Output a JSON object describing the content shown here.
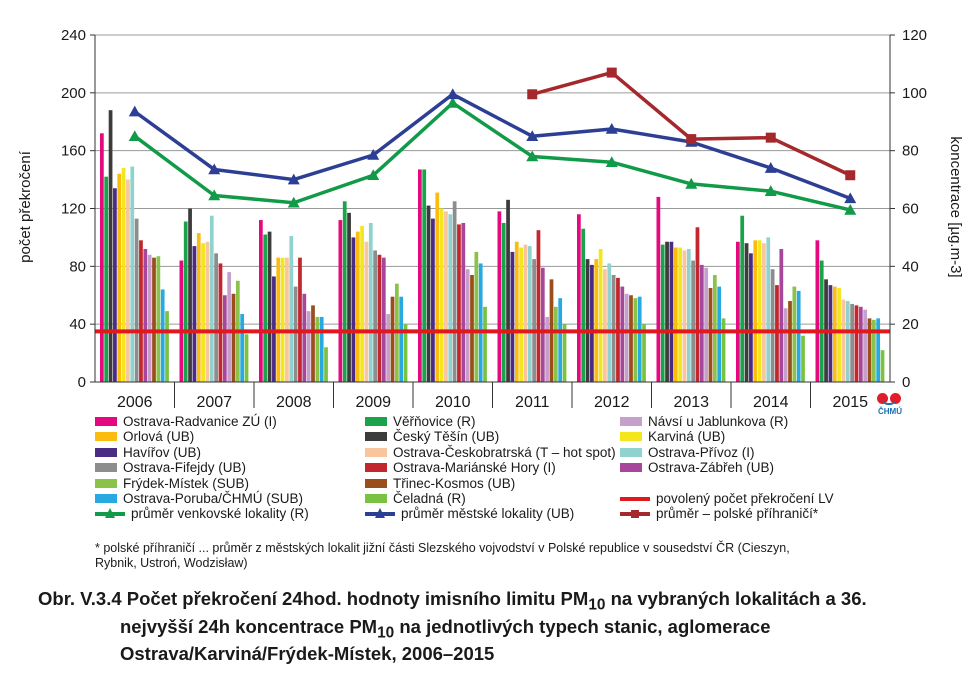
{
  "chart_data": {
    "type": "bar",
    "categories": [
      "2006",
      "2007",
      "2008",
      "2009",
      "2010",
      "2011",
      "2012",
      "2013",
      "2014",
      "2015"
    ],
    "ylabel": "počet překročení",
    "ylabel_right": "koncentrace [µg.m-3]",
    "ylim": [
      0,
      240
    ],
    "ylim_right": [
      0,
      120
    ],
    "yticks": [
      0,
      40,
      80,
      120,
      160,
      200,
      240
    ],
    "yticks_right": [
      0,
      20,
      40,
      60,
      80,
      100,
      120
    ],
    "grid": true,
    "series": [
      {
        "name": "Ostrava-Radvanice ZÚ (I)",
        "color": "#e5097f",
        "values": [
          172,
          84,
          112,
          112,
          147,
          118,
          116,
          128,
          97,
          98
        ]
      },
      {
        "name": "Věřňovice (R)",
        "color": "#1aa34a",
        "values": [
          142,
          111,
          102,
          125,
          147,
          110,
          106,
          95,
          115,
          84
        ]
      },
      {
        "name": "Český Těšín (UB)",
        "color": "#3c3c3c",
        "values": [
          188,
          120,
          104,
          117,
          122,
          126,
          85,
          97,
          96,
          71
        ]
      },
      {
        "name": "Havířov (UB)",
        "color": "#4b2c85",
        "values": [
          134,
          94,
          73,
          100,
          113,
          90,
          81,
          97,
          89,
          67
        ]
      },
      {
        "name": "Orlová (UB)",
        "color": "#fbbb0f",
        "values": [
          144,
          103,
          86,
          104,
          131,
          97,
          85,
          93,
          98,
          66
        ]
      },
      {
        "name": "Karviná (UB)",
        "color": "#f4e61d",
        "values": [
          148,
          96,
          86,
          108,
          120,
          93,
          92,
          93,
          98,
          65
        ]
      },
      {
        "name": "Ostrava-Českobratrská (T – hot spot)",
        "color": "#f9c59d",
        "values": [
          140,
          97,
          86,
          97,
          118,
          95,
          78,
          91,
          96,
          57
        ]
      },
      {
        "name": "Ostrava-Přívoz (I)",
        "color": "#8fd2cf",
        "values": [
          149,
          115,
          101,
          110,
          116,
          94,
          82,
          92,
          100,
          56
        ]
      },
      {
        "name": "Ostrava-Fifejdy (UB)",
        "color": "#8d8d8d",
        "values": [
          113,
          89,
          66,
          91,
          125,
          85,
          74,
          84,
          78,
          54
        ]
      },
      {
        "name": "Ostrava-Mariánské Hory (I)",
        "color": "#c1272d",
        "values": [
          98,
          82,
          86,
          88,
          109,
          105,
          72,
          107,
          67,
          53
        ]
      },
      {
        "name": "Ostrava-Zábřeh (UB)",
        "color": "#a6479b",
        "values": [
          92,
          60,
          61,
          86,
          110,
          79,
          66,
          81,
          92,
          52
        ]
      },
      {
        "name": "Návsí u Jablunkova (R)",
        "color": "#c79fcb",
        "values": [
          88,
          76,
          49,
          47,
          78,
          45,
          61,
          79,
          51,
          50
        ]
      },
      {
        "name": "Třinec-Kosmos (UB)",
        "color": "#9a4e1c",
        "values": [
          86,
          61,
          53,
          59,
          74,
          71,
          60,
          65,
          56,
          44
        ]
      },
      {
        "name": "Frýdek-Místek (SUB)",
        "color": "#8bc34a",
        "values": [
          87,
          70,
          45,
          68,
          90,
          52,
          58,
          74,
          66,
          43
        ]
      },
      {
        "name": "Ostrava-Poruba/ČHMÚ (SUB)",
        "color": "#29a9e1",
        "values": [
          64,
          47,
          45,
          59,
          82,
          58,
          59,
          66,
          63,
          44
        ]
      },
      {
        "name": "Čeladná (R)",
        "color": "#7cc242",
        "values": [
          49,
          33,
          24,
          40,
          52,
          40,
          40,
          44,
          32,
          22
        ]
      }
    ],
    "lines": [
      {
        "name": "průměr venkovské lokality (R)",
        "color": "#119a48",
        "marker": "triangle",
        "values": [
          85,
          64.5,
          62,
          71.5,
          96.5,
          78,
          76,
          68.5,
          66,
          59.5
        ]
      },
      {
        "name": "průměr městské lokality (UB)",
        "color": "#2d3f94",
        "marker": "triangle",
        "values": [
          93.5,
          73.5,
          70,
          78.5,
          99.5,
          85,
          87.5,
          83,
          74,
          63.5
        ]
      },
      {
        "name": "průměr – polské příhraničí*",
        "color": "#a4282c",
        "marker": "square",
        "values": [
          null,
          null,
          null,
          null,
          null,
          99.5,
          107,
          84,
          84.5,
          71.5
        ]
      }
    ],
    "limit": {
      "name": "povolený počet překročení LV",
      "color": "#e0191f",
      "value": 35
    }
  },
  "legend": {
    "col1": [
      {
        "label": "Ostrava-Radvanice ZÚ (I)",
        "color": "#e5097f",
        "kind": "box"
      },
      {
        "label": "Orlová (UB)",
        "color": "#fbbb0f",
        "kind": "box"
      },
      {
        "label": "Havířov (UB)",
        "color": "#4b2c85",
        "kind": "box"
      },
      {
        "label": "Ostrava-Fifejdy (UB)",
        "color": "#8d8d8d",
        "kind": "box"
      },
      {
        "label": "Frýdek-Místek (SUB)",
        "color": "#8bc34a",
        "kind": "box"
      },
      {
        "label": "Ostrava-Poruba/ČHMÚ (SUB)",
        "color": "#29a9e1",
        "kind": "box"
      },
      {
        "label": "průměr venkovské lokality (R)",
        "color": "#119a48",
        "kind": "line-tri"
      }
    ],
    "col2": [
      {
        "label": "Věřňovice (R)",
        "color": "#1aa34a",
        "kind": "box"
      },
      {
        "label": "Český Těšín (UB)",
        "color": "#3c3c3c",
        "kind": "box"
      },
      {
        "label": "Ostrava-Českobratrská (T – hot spot)",
        "color": "#f9c59d",
        "kind": "box"
      },
      {
        "label": "Ostrava-Mariánské Hory (I)",
        "color": "#c1272d",
        "kind": "box"
      },
      {
        "label": "Třinec-Kosmos (UB)",
        "color": "#9a4e1c",
        "kind": "box"
      },
      {
        "label": "Čeladná (R)",
        "color": "#7cc242",
        "kind": "box"
      },
      {
        "label": "průměr městské lokality (UB)",
        "color": "#2d3f94",
        "kind": "line-tri"
      }
    ],
    "col3": [
      {
        "label": "Návsí u Jablunkova (R)",
        "color": "#c79fcb",
        "kind": "box"
      },
      {
        "label": "Karviná (UB)",
        "color": "#f4e61d",
        "kind": "box"
      },
      {
        "label": "Ostrava-Přívoz (I)",
        "color": "#8fd2cf",
        "kind": "box"
      },
      {
        "label": "Ostrava-Zábřeh (UB)",
        "color": "#a6479b",
        "kind": "box"
      },
      {
        "label": "",
        "color": "",
        "kind": "none"
      },
      {
        "label": "povolený počet překročení LV",
        "color": "#e0191f",
        "kind": "line"
      },
      {
        "label": "průměr – polské příhraničí*",
        "color": "#a4282c",
        "kind": "line-sq"
      }
    ]
  },
  "logo": {
    "text": "ČHMÚ"
  },
  "footnote": {
    "line1": "* polské příhraničí ... průměr z městských lokalit jižní části Slezského vojvodství v Polské republice v sousedství ČR (Cieszyn,",
    "line2": "Rybnik, Ustroń, Wodzisław)"
  },
  "caption": {
    "line1": "Obr. V.3.4  Počet překročení 24hod. hodnoty imisního limitu PM",
    "line1_sub": "10",
    "line1_rest": " na vybraných lokalitách a 36.",
    "line2": "nejvyšší 24h koncentrace PM",
    "line2_sub": "10",
    "line2_rest": " na jednotlivých typech stanic, aglomerace",
    "line3": "Ostrava/Karviná/Frýdek-Místek, 2006–2015"
  }
}
